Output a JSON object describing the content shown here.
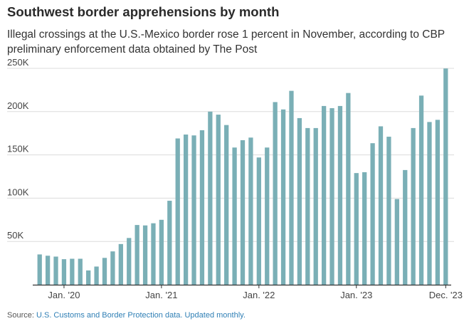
{
  "title": "Southwest border apprehensions by month",
  "subtitle": "Illegal crossings at the U.S.-Mexico border rose 1 percent in November, according to CBP preliminary enforcement data obtained by The Post",
  "source": {
    "label": "Source:",
    "link_text": "U.S. Customs and Border Protection data. Updated monthly."
  },
  "colors": {
    "bar": "#7aafb6",
    "grid": "#dcdcdc",
    "axis": "#333333",
    "link": "#2f7fb5"
  },
  "chart_data": {
    "type": "bar",
    "title": "Southwest border apprehensions by month",
    "xlabel": "",
    "ylabel": "",
    "ylim": [
      0,
      250000
    ],
    "yticks": [
      50000,
      100000,
      150000,
      200000,
      250000
    ],
    "ytick_labels": [
      "50K",
      "100K",
      "150K",
      "200K",
      "250K"
    ],
    "xtick_labels": [
      {
        "label": "Jan. '20",
        "index": 3
      },
      {
        "label": "Jan. '21",
        "index": 15
      },
      {
        "label": "Jan. '22",
        "index": 27
      },
      {
        "label": "Jan. '23",
        "index": 39
      },
      {
        "label": "Dec. '23",
        "index": 50
      }
    ],
    "grid": true,
    "categories": [
      "Oct 2019",
      "Nov 2019",
      "Dec 2019",
      "Jan 2020",
      "Feb 2020",
      "Mar 2020",
      "Apr 2020",
      "May 2020",
      "Jun 2020",
      "Jul 2020",
      "Aug 2020",
      "Sep 2020",
      "Oct 2020",
      "Nov 2020",
      "Dec 2020",
      "Jan 2021",
      "Feb 2021",
      "Mar 2021",
      "Apr 2021",
      "May 2021",
      "Jun 2021",
      "Jul 2021",
      "Aug 2021",
      "Sep 2021",
      "Oct 2021",
      "Nov 2021",
      "Dec 2021",
      "Jan 2022",
      "Feb 2022",
      "Mar 2022",
      "Apr 2022",
      "May 2022",
      "Jun 2022",
      "Jul 2022",
      "Aug 2022",
      "Sep 2022",
      "Oct 2022",
      "Nov 2022",
      "Dec 2022",
      "Jan 2023",
      "Feb 2023",
      "Mar 2023",
      "Apr 2023",
      "May 2023",
      "Jun 2023",
      "Jul 2023",
      "Aug 2023",
      "Sep 2023",
      "Oct 2023",
      "Nov 2023",
      "Dec 2023"
    ],
    "values": [
      35000,
      33500,
      32500,
      29500,
      30000,
      30000,
      16500,
      21000,
      31000,
      38500,
      47000,
      54000,
      69000,
      68500,
      71000,
      75000,
      97000,
      169000,
      173500,
      172500,
      178500,
      200000,
      196500,
      184500,
      158500,
      167000,
      170000,
      147000,
      158500,
      211000,
      202500,
      224000,
      192500,
      181000,
      181000,
      206500,
      204000,
      206500,
      221500,
      129000,
      130000,
      163500,
      183000,
      171000,
      99000,
      132500,
      181000,
      218500,
      188000,
      190500,
      249800
    ]
  }
}
